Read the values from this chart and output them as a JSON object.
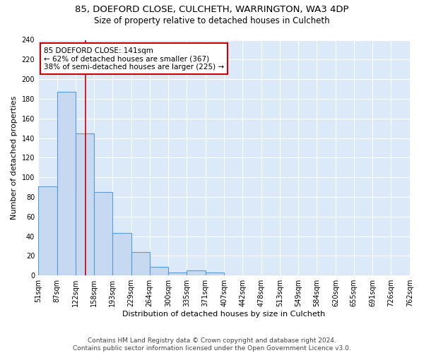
{
  "title1": "85, DOEFORD CLOSE, CULCHETH, WARRINGTON, WA3 4DP",
  "title2": "Size of property relative to detached houses in Culcheth",
  "xlabel": "Distribution of detached houses by size in Culcheth",
  "ylabel": "Number of detached properties",
  "bin_edges": [
    51,
    87,
    122,
    158,
    193,
    229,
    264,
    300,
    335,
    371,
    407,
    442,
    478,
    513,
    549,
    584,
    620,
    655,
    691,
    726,
    762
  ],
  "bar_heights": [
    91,
    187,
    145,
    85,
    43,
    24,
    9,
    3,
    5,
    3,
    0,
    0,
    0,
    0,
    0,
    0,
    0,
    0,
    0,
    0
  ],
  "bar_color": "#c6d9f0",
  "bar_edgecolor": "#5b9bd5",
  "bar_linewidth": 0.8,
  "red_line_x": 141,
  "red_line_color": "#cc0000",
  "annotation_text": "85 DOEFORD CLOSE: 141sqm\n← 62% of detached houses are smaller (367)\n38% of semi-detached houses are larger (225) →",
  "annotation_box_color": "white",
  "annotation_box_edgecolor": "#cc0000",
  "annotation_fontsize": 7.5,
  "ylim": [
    0,
    240
  ],
  "yticks": [
    0,
    20,
    40,
    60,
    80,
    100,
    120,
    140,
    160,
    180,
    200,
    220,
    240
  ],
  "background_color": "#dce9f8",
  "grid_color": "white",
  "footer_text": "Contains HM Land Registry data © Crown copyright and database right 2024.\nContains public sector information licensed under the Open Government Licence v3.0.",
  "title1_fontsize": 9.5,
  "title2_fontsize": 8.5,
  "xlabel_fontsize": 8,
  "ylabel_fontsize": 8,
  "tick_fontsize": 7,
  "footer_fontsize": 6.5
}
